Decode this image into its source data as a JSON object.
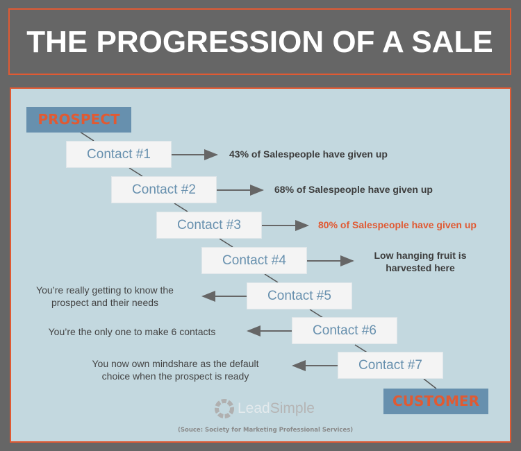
{
  "title": "THE PROGRESSION OF A SALE",
  "start_label": "PROSPECT",
  "end_label": "CUSTOMER",
  "contacts": [
    {
      "label": "Contact #1",
      "note": "43% of Salespeople have given up"
    },
    {
      "label": "Contact #2",
      "note": "68% of Salespeople have given up"
    },
    {
      "label": "Contact #3",
      "note": "80% of Salespeople have given up"
    },
    {
      "label": "Contact #4",
      "note_lines": [
        "Low hanging fruit is",
        "harvested here"
      ]
    },
    {
      "label": "Contact #5",
      "note_lines": [
        "You’re really getting to know the",
        "prospect and their needs"
      ]
    },
    {
      "label": "Contact #6",
      "note": "You’re the only one to make 6 contacts"
    },
    {
      "label": "Contact #7",
      "note_lines": [
        "You now own mindshare as the default",
        "choice when the prospect is ready"
      ]
    }
  ],
  "logo": {
    "part1": "Lead",
    "part2": "Simple"
  },
  "source": "(Souce: Society for Marketing Professional Services)",
  "colors": {
    "accent": "#e05a33",
    "tag_bg": "#6790ae",
    "panel_bg": "#c3d8df",
    "frame_bg": "#666666",
    "box_text": "#6790ae"
  }
}
